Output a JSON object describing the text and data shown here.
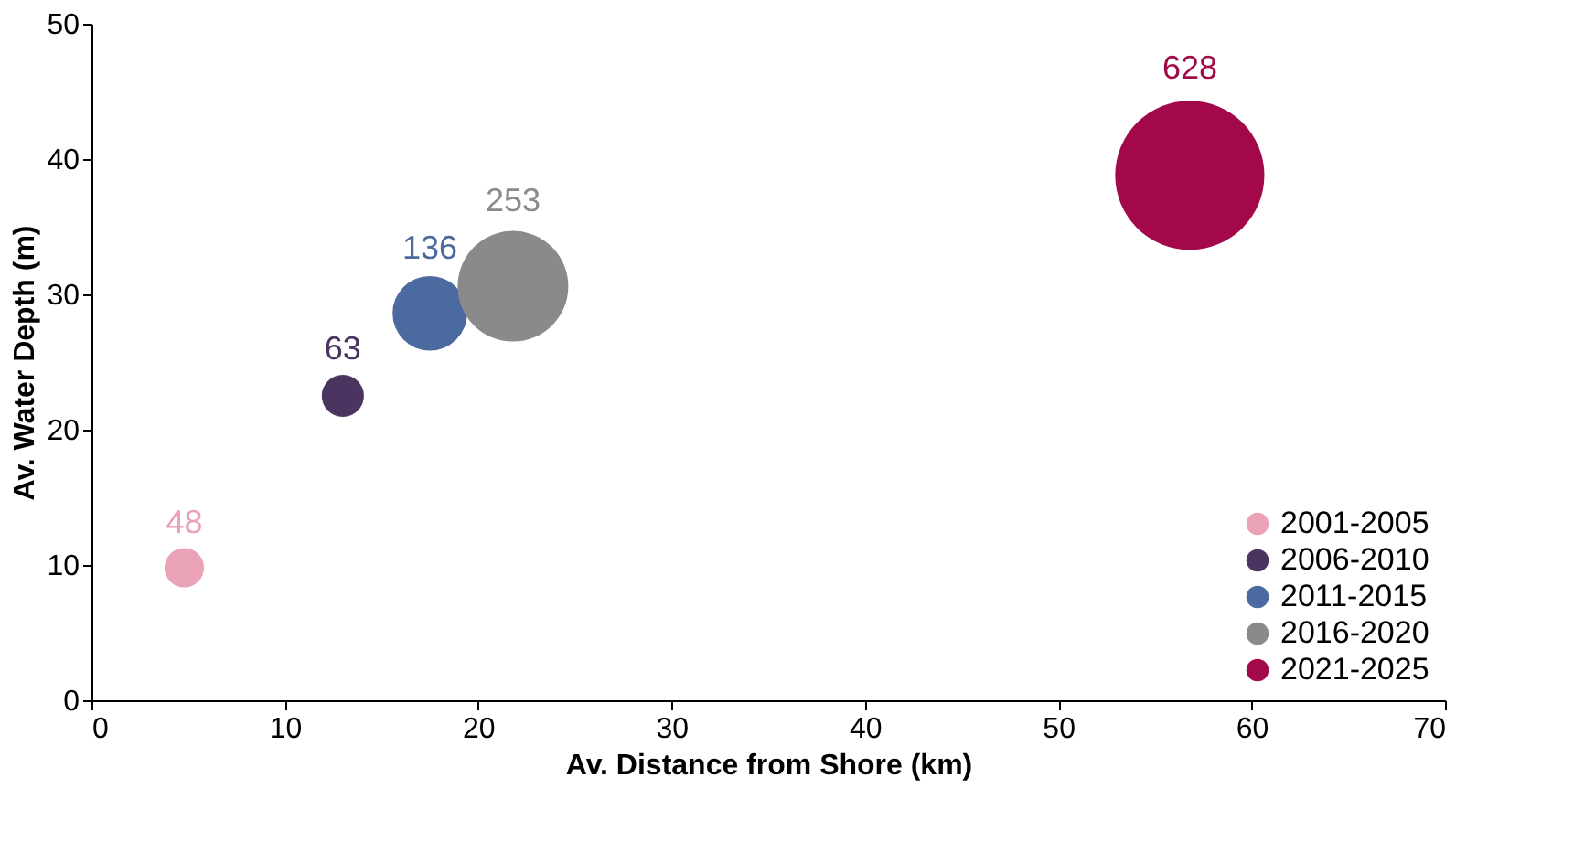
{
  "chart_data": {
    "type": "bubble",
    "xlabel": "Av. Distance from Shore (km)",
    "ylabel": "Av. Water Depth (m)",
    "xlim": [
      0,
      70
    ],
    "xticks": [
      0,
      10,
      20,
      30,
      40,
      50,
      60,
      70
    ],
    "ylim": [
      0,
      50
    ],
    "yticks": [
      0,
      10,
      20,
      30,
      40,
      50
    ],
    "grid": false,
    "legend": "bottom right",
    "series": [
      {
        "name": "2001-2005",
        "color": "#eaa3b6",
        "x": [
          4.8
        ],
        "values": [
          9.8
        ],
        "sizes": [
          0.07
        ]
      },
      {
        "name": "2006-2010",
        "color": "#4b3560",
        "x": [
          13
        ],
        "values": [
          22.5
        ],
        "sizes": [
          0.08
        ]
      },
      {
        "name": "2011-2015",
        "color": "#4a6aa0",
        "x": [
          17.5
        ],
        "values": [
          28.6
        ],
        "sizes": [
          0.25
        ]
      },
      {
        "name": "2016-2020",
        "color": "#8a8a8a",
        "x": [
          21.8
        ],
        "values": [
          30.6
        ],
        "sizes": [
          0.55
        ]
      },
      {
        "name": "2021-2025",
        "color": "#a3094a",
        "x": [
          56.8
        ],
        "values": [
          38.8
        ],
        "sizes": [
          1.0
        ]
      }
    ],
    "annotations": [
      {
        "text": "48",
        "x": 4.8,
        "y": 9.8
      },
      {
        "text": "63",
        "x": 13,
        "y": 22.5
      },
      {
        "text": "136",
        "x": 17.5,
        "y": 28.6
      },
      {
        "text": "253",
        "x": 21.8,
        "y": 30.6
      },
      {
        "text": "628",
        "x": 56.8,
        "y": 38.8
      }
    ]
  }
}
